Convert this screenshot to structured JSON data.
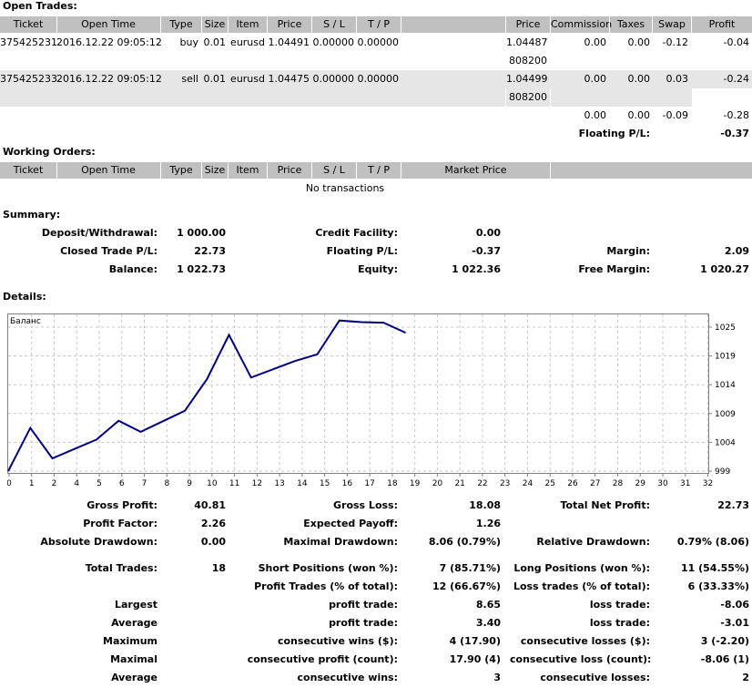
{
  "open_trades": {
    "title": "Open Trades:",
    "columns": [
      "Ticket",
      "Open Time",
      "Type",
      "Size",
      "Item",
      "Price",
      "S / L",
      "T / P",
      "Price",
      "Commission",
      "Taxes",
      "Swap",
      "Profit"
    ],
    "rows": [
      {
        "ticket": "375425231",
        "time": "2016.12.22 09:05:12",
        "type": "buy",
        "size": "0.01",
        "item": "eurusd",
        "price": "1.04491",
        "sl": "0.00000",
        "tp": "0.00000",
        "cur_price": "1.04487",
        "commission": "0.00",
        "taxes": "0.00",
        "swap": "-0.12",
        "profit": "-0.04",
        "extra": "808200"
      },
      {
        "ticket": "375425233",
        "time": "2016.12.22 09:05:12",
        "type": "sell",
        "size": "0.01",
        "item": "eurusd",
        "price": "1.04475",
        "sl": "0.00000",
        "tp": "0.00000",
        "cur_price": "1.04499",
        "commission": "0.00",
        "taxes": "0.00",
        "swap": "0.03",
        "profit": "-0.24",
        "extra": "808200"
      }
    ],
    "totals": {
      "commission": "0.00",
      "taxes": "0.00",
      "swap": "-0.09",
      "profit": "-0.28"
    },
    "floating_label": "Floating P/L:",
    "floating_value": "-0.37"
  },
  "working_orders": {
    "title": "Working Orders:",
    "columns": [
      "Ticket",
      "Open Time",
      "Type",
      "Size",
      "Item",
      "Price",
      "S / L",
      "T / P",
      "Market Price"
    ],
    "empty": "No transactions"
  },
  "summary": {
    "title": "Summary:",
    "deposit_label": "Deposit/Withdrawal:",
    "deposit": "1 000.00",
    "credit_label": "Credit Facility:",
    "credit": "0.00",
    "closed_label": "Closed Trade P/L:",
    "closed": "22.73",
    "floating_label": "Floating P/L:",
    "floating": "-0.37",
    "margin_label": "Margin:",
    "margin": "2.09",
    "balance_label": "Balance:",
    "balance": "1 022.73",
    "equity_label": "Equity:",
    "equity": "1 022.36",
    "free_margin_label": "Free Margin:",
    "free_margin": "1 020.27"
  },
  "details": {
    "title": "Details:"
  },
  "chart_data": {
    "type": "line",
    "title": "Баланс",
    "x": [
      0,
      1,
      2,
      3,
      4,
      5,
      6,
      7,
      8,
      9,
      10,
      11,
      12,
      13,
      14,
      15,
      16,
      17,
      18
    ],
    "series": [
      {
        "values": [
          999.0,
          1006.8,
          1001.3,
          1003.0,
          1004.7,
          1008.1,
          1006.1,
          1008.0,
          1009.9,
          1015.6,
          1023.6,
          1015.9,
          1017.4,
          1018.9,
          1020.1,
          1026.2,
          1025.9,
          1025.8,
          1024.0
        ]
      }
    ],
    "x_ticks": [
      "0",
      "1",
      "2",
      "4",
      "5",
      "6",
      "7",
      "8",
      "9",
      "10",
      "11",
      "12",
      "13",
      "14",
      "15",
      "16",
      "17",
      "18",
      "19",
      "20",
      "21",
      "22",
      "23",
      "24",
      "25",
      "26",
      "27",
      "28",
      "29",
      "30",
      "31",
      "32"
    ],
    "y_ticks": [
      "1025",
      "1019",
      "1014",
      "1009",
      "1004",
      "999"
    ],
    "ylim": [
      999,
      1025
    ],
    "grid": true,
    "color": "#000080"
  },
  "stats": {
    "gross_profit_label": "Gross Profit:",
    "gross_profit": "40.81",
    "gross_loss_label": "Gross Loss:",
    "gross_loss": "18.08",
    "total_net_label": "Total Net Profit:",
    "total_net": "22.73",
    "profit_factor_label": "Profit Factor:",
    "profit_factor": "2.26",
    "expected_payoff_label": "Expected Payoff:",
    "expected_payoff": "1.26",
    "abs_dd_label": "Absolute Drawdown:",
    "abs_dd": "0.00",
    "max_dd_label": "Maximal Drawdown:",
    "max_dd": "8.06 (0.79%)",
    "rel_dd_label": "Relative Drawdown:",
    "rel_dd": "0.79% (8.06)",
    "total_trades_label": "Total Trades:",
    "total_trades": "18",
    "short_label": "Short Positions (won %):",
    "short": "7 (85.71%)",
    "long_label": "Long Positions (won %):",
    "long": "11 (54.55%)",
    "profit_trades_label": "Profit Trades (% of total):",
    "profit_trades": "12 (66.67%)",
    "loss_trades_label": "Loss trades (% of total):",
    "loss_trades": "6 (33.33%)",
    "largest_label": "Largest",
    "largest_pt_label": "profit trade:",
    "largest_pt": "8.65",
    "largest_lt_label": "loss trade:",
    "largest_lt": "-8.06",
    "average_label": "Average",
    "average_pt_label": "profit trade:",
    "average_pt": "3.40",
    "average_lt_label": "loss trade:",
    "average_lt": "-3.01",
    "maximum_label": "Maximum",
    "max_cw_label": "consecutive wins ($):",
    "max_cw": "4 (17.90)",
    "max_cl_label": "consecutive losses ($):",
    "max_cl": "3 (-2.20)",
    "maximal_label": "Maximal",
    "mx_cp_label": "consecutive profit (count):",
    "mx_cp": "17.90 (4)",
    "mx_cl_label": "consecutive loss (count):",
    "mx_cl": "-8.06 (1)",
    "average2_label": "Average",
    "avg_cw_label": "consecutive wins:",
    "avg_cw": "3",
    "avg_cl_label": "consecutive losses:",
    "avg_cl": "2"
  }
}
